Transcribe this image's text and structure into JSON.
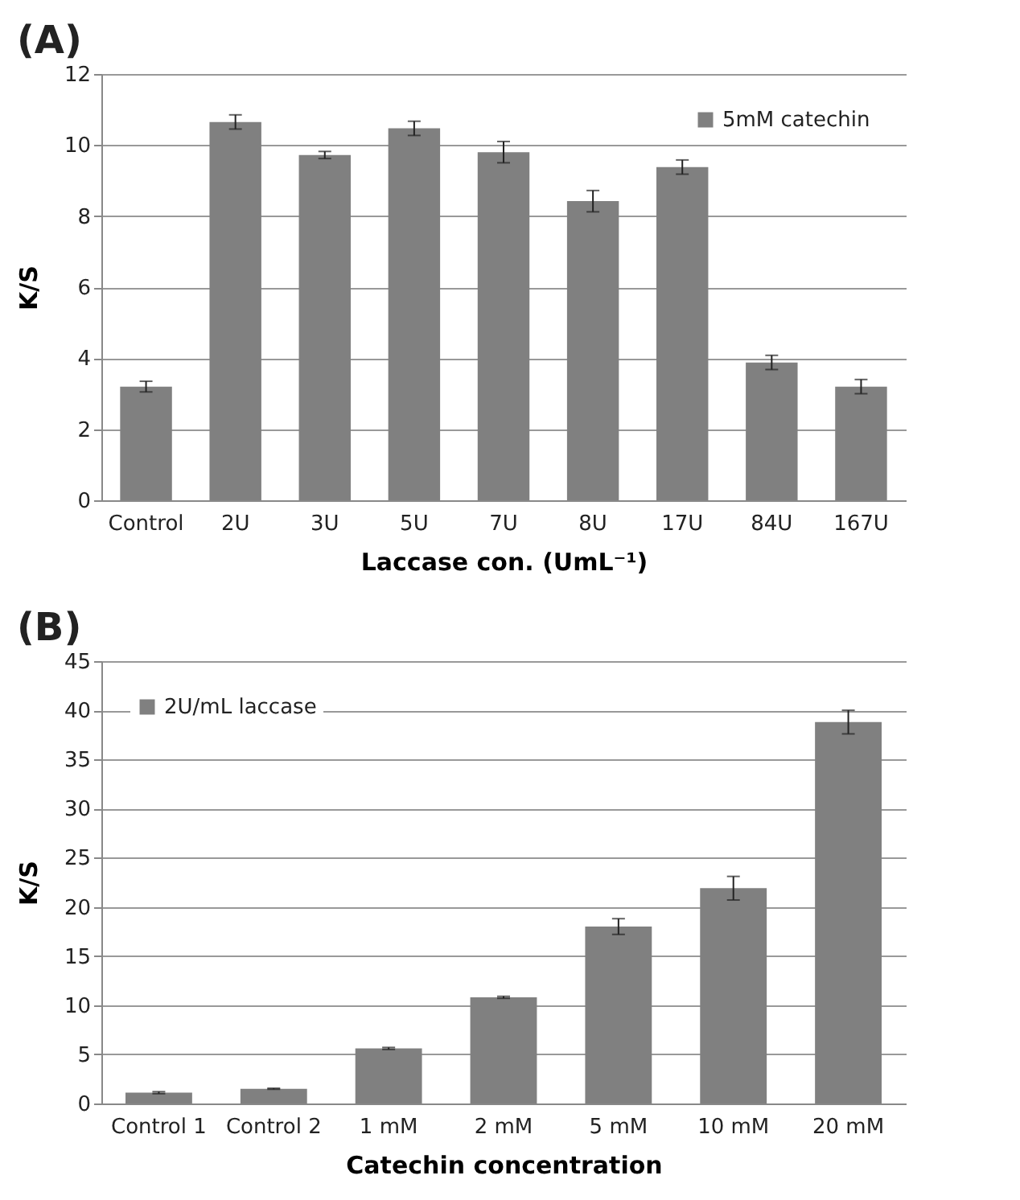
{
  "chart_data": [
    {
      "type": "bar",
      "title": "(A)",
      "xlabel": "Laccase con. (UmL⁻¹)",
      "ylabel": "K/S",
      "categories": [
        "Control",
        "2U",
        "3U",
        "5U",
        "7U",
        "8U",
        "17U",
        "84U",
        "167U"
      ],
      "series": [
        {
          "name": "5mM catechin",
          "color": "#808080",
          "values": [
            3.2,
            10.65,
            9.72,
            10.47,
            9.8,
            8.42,
            9.38,
            3.88,
            3.2
          ],
          "errors": [
            0.15,
            0.2,
            0.1,
            0.2,
            0.3,
            0.3,
            0.2,
            0.2,
            0.2
          ]
        }
      ],
      "ylim": [
        0,
        12
      ],
      "yticks": [
        0,
        2,
        4,
        6,
        8,
        10,
        12
      ],
      "grid": "y",
      "legend": "top right"
    },
    {
      "type": "bar",
      "title": "(B)",
      "xlabel": "Catechin concentration",
      "ylabel": "K/S",
      "categories": [
        "Control 1",
        "Control 2",
        "1 mM",
        "2 mM",
        "5 mM",
        "10 mM",
        "20 mM"
      ],
      "series": [
        {
          "name": "2U/mL laccase",
          "color": "#808080",
          "values": [
            1.1,
            1.5,
            5.6,
            10.8,
            18.0,
            21.9,
            38.8
          ],
          "errors": [
            0.1,
            0.05,
            0.1,
            0.1,
            0.8,
            1.2,
            1.2
          ]
        }
      ],
      "ylim": [
        0,
        45
      ],
      "yticks": [
        0,
        5,
        10,
        15,
        20,
        25,
        30,
        35,
        40,
        45
      ],
      "grid": "y",
      "legend": "top left"
    }
  ]
}
